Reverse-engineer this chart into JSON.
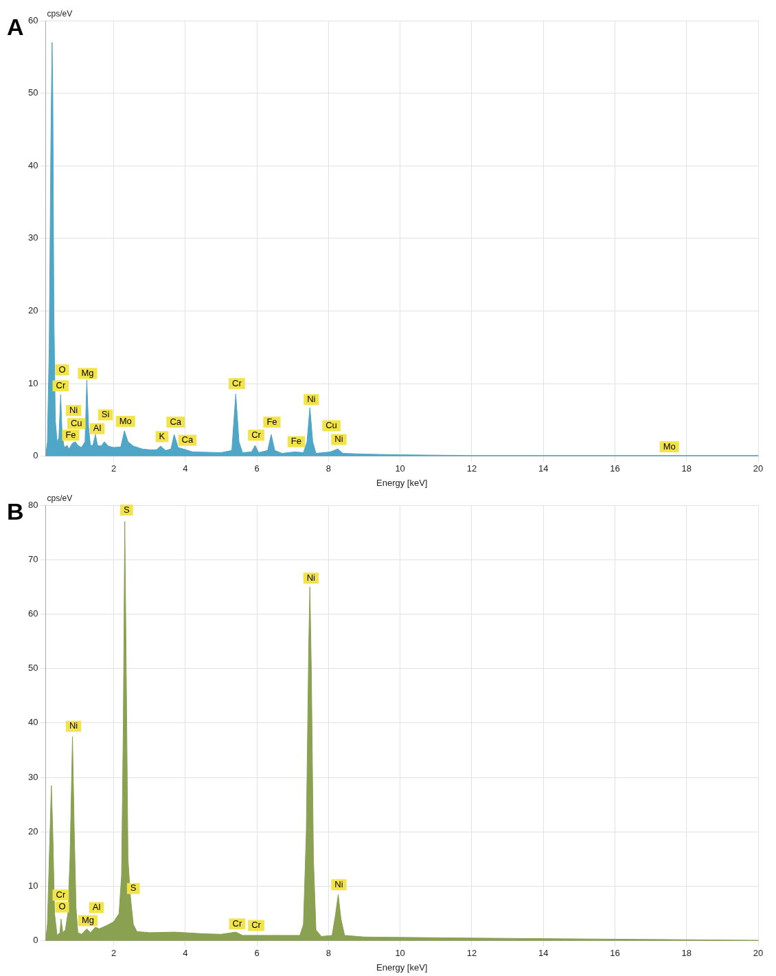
{
  "chart_data": [
    {
      "type": "area",
      "title": "A",
      "ylabel": "cps/eV",
      "xlabel": "Energy [keV]",
      "xlim": [
        0.1,
        20
      ],
      "xticks": [
        2,
        4,
        6,
        8,
        10,
        12,
        14,
        16,
        18,
        20
      ],
      "ylim": [
        0,
        60
      ],
      "yticks": [
        0,
        10,
        20,
        30,
        40,
        50,
        60
      ],
      "grid": true,
      "series": [
        {
          "color": "#4fa6c6",
          "x": [
            0.1,
            0.15,
            0.2,
            0.25,
            0.28,
            0.3,
            0.33,
            0.37,
            0.42,
            0.47,
            0.52,
            0.56,
            0.62,
            0.7,
            0.75,
            0.85,
            0.93,
            1.0,
            1.1,
            1.2,
            1.25,
            1.3,
            1.35,
            1.42,
            1.49,
            1.55,
            1.65,
            1.74,
            1.85,
            2.0,
            2.2,
            2.3,
            2.4,
            2.55,
            2.8,
            3.0,
            3.2,
            3.31,
            3.45,
            3.6,
            3.69,
            3.8,
            4.01,
            4.2,
            5.0,
            5.3,
            5.41,
            5.5,
            5.6,
            5.85,
            5.95,
            6.05,
            6.3,
            6.4,
            6.5,
            6.7,
            7.06,
            7.3,
            7.4,
            7.48,
            7.56,
            7.65,
            8.05,
            8.26,
            8.4,
            9,
            10,
            12,
            14,
            17.5,
            20
          ],
          "values": [
            0,
            2,
            15,
            45,
            57,
            50,
            20,
            5,
            2,
            2.5,
            8.5,
            3,
            1.2,
            1.5,
            1,
            1.8,
            2,
            1.5,
            1.2,
            2,
            10.5,
            4,
            1.5,
            1.5,
            3,
            1.5,
            1.4,
            2,
            1.4,
            1.2,
            1.3,
            3.5,
            2,
            1.4,
            1,
            0.9,
            0.9,
            1.4,
            0.8,
            1,
            3,
            1.2,
            0.9,
            0.6,
            0.5,
            0.8,
            8.6,
            2,
            0.5,
            0.6,
            1.5,
            0.5,
            0.8,
            3,
            0.8,
            0.4,
            0.6,
            0.5,
            2,
            6.7,
            2,
            0.4,
            0.6,
            1,
            0.4,
            0.3,
            0.2,
            0.1,
            0.1,
            0.1,
            0.1
          ]
        }
      ],
      "annotations": [
        {
          "text": "O",
          "x": 0.56,
          "y": 11.9
        },
        {
          "text": "Cr",
          "x": 0.52,
          "y": 9.7
        },
        {
          "text": "Mg",
          "x": 1.27,
          "y": 11.4
        },
        {
          "text": "Ni",
          "x": 0.88,
          "y": 6.3
        },
        {
          "text": "Cu",
          "x": 0.96,
          "y": 4.5
        },
        {
          "text": "Fe",
          "x": 0.8,
          "y": 2.9
        },
        {
          "text": "Si",
          "x": 1.77,
          "y": 5.7
        },
        {
          "text": "Al",
          "x": 1.54,
          "y": 3.8
        },
        {
          "text": "Mo",
          "x": 2.33,
          "y": 4.8
        },
        {
          "text": "K",
          "x": 3.35,
          "y": 2.7
        },
        {
          "text": "Ca",
          "x": 3.73,
          "y": 4.7
        },
        {
          "text": "Ca",
          "x": 4.06,
          "y": 2.2
        },
        {
          "text": "Cr",
          "x": 5.44,
          "y": 10
        },
        {
          "text": "Cr",
          "x": 5.98,
          "y": 2.9
        },
        {
          "text": "Fe",
          "x": 6.42,
          "y": 4.7
        },
        {
          "text": "Fe",
          "x": 7.1,
          "y": 2
        },
        {
          "text": "Ni",
          "x": 7.52,
          "y": 7.8
        },
        {
          "text": "Cu",
          "x": 8.08,
          "y": 4.2
        },
        {
          "text": "Ni",
          "x": 8.29,
          "y": 2.3
        },
        {
          "text": "Mo",
          "x": 17.52,
          "y": 1.3
        }
      ]
    },
    {
      "type": "area",
      "title": "B",
      "ylabel": "cps/eV",
      "xlabel": "Energy [keV]",
      "xlim": [
        0.1,
        20
      ],
      "xticks": [
        2,
        4,
        6,
        8,
        10,
        12,
        14,
        16,
        18,
        20
      ],
      "ylim": [
        0,
        80
      ],
      "yticks": [
        0,
        10,
        20,
        30,
        40,
        50,
        60,
        70,
        80
      ],
      "grid": true,
      "series": [
        {
          "color": "#8aa152",
          "x": [
            0.1,
            0.15,
            0.2,
            0.26,
            0.3,
            0.35,
            0.42,
            0.5,
            0.53,
            0.58,
            0.65,
            0.72,
            0.78,
            0.85,
            0.9,
            0.95,
            1.0,
            1.1,
            1.25,
            1.35,
            1.49,
            1.6,
            1.8,
            2.0,
            2.15,
            2.22,
            2.27,
            2.31,
            2.35,
            2.4,
            2.47,
            2.55,
            2.65,
            3.0,
            3.7,
            4.5,
            5.0,
            5.41,
            5.6,
            6.4,
            7.2,
            7.3,
            7.38,
            7.45,
            7.48,
            7.52,
            7.58,
            7.65,
            7.8,
            8.1,
            8.2,
            8.27,
            8.35,
            8.45,
            9,
            12,
            16,
            20
          ],
          "values": [
            0,
            3,
            15,
            28.5,
            20,
            5,
            1,
            1.5,
            4,
            1.5,
            2,
            5,
            15,
            37.5,
            20,
            6,
            1.5,
            1.2,
            2.2,
            1.5,
            2.5,
            2.2,
            2.8,
            3.5,
            5,
            12,
            40,
            77,
            50,
            15,
            8,
            3,
            1.7,
            1.5,
            1.6,
            1.3,
            1.2,
            1.6,
            1,
            1,
            1,
            3,
            20,
            55,
            65,
            50,
            15,
            2,
            0.8,
            1,
            5,
            8.5,
            4,
            1,
            0.7,
            0.5,
            0.3,
            0.1
          ]
        }
      ],
      "annotations": [
        {
          "text": "S",
          "x": 2.36,
          "y": 79.1
        },
        {
          "text": "Ni",
          "x": 7.51,
          "y": 66.6
        },
        {
          "text": "Ni",
          "x": 0.88,
          "y": 39.4
        },
        {
          "text": "S",
          "x": 2.55,
          "y": 9.6
        },
        {
          "text": "Ni",
          "x": 8.29,
          "y": 10.3
        },
        {
          "text": "Cr",
          "x": 0.52,
          "y": 8.4
        },
        {
          "text": "O",
          "x": 0.56,
          "y": 6.2
        },
        {
          "text": "Al",
          "x": 1.52,
          "y": 6.1
        },
        {
          "text": "Mg",
          "x": 1.28,
          "y": 3.7
        },
        {
          "text": "Cr",
          "x": 5.45,
          "y": 3.1
        },
        {
          "text": "Cr",
          "x": 5.98,
          "y": 2.8
        }
      ]
    }
  ]
}
